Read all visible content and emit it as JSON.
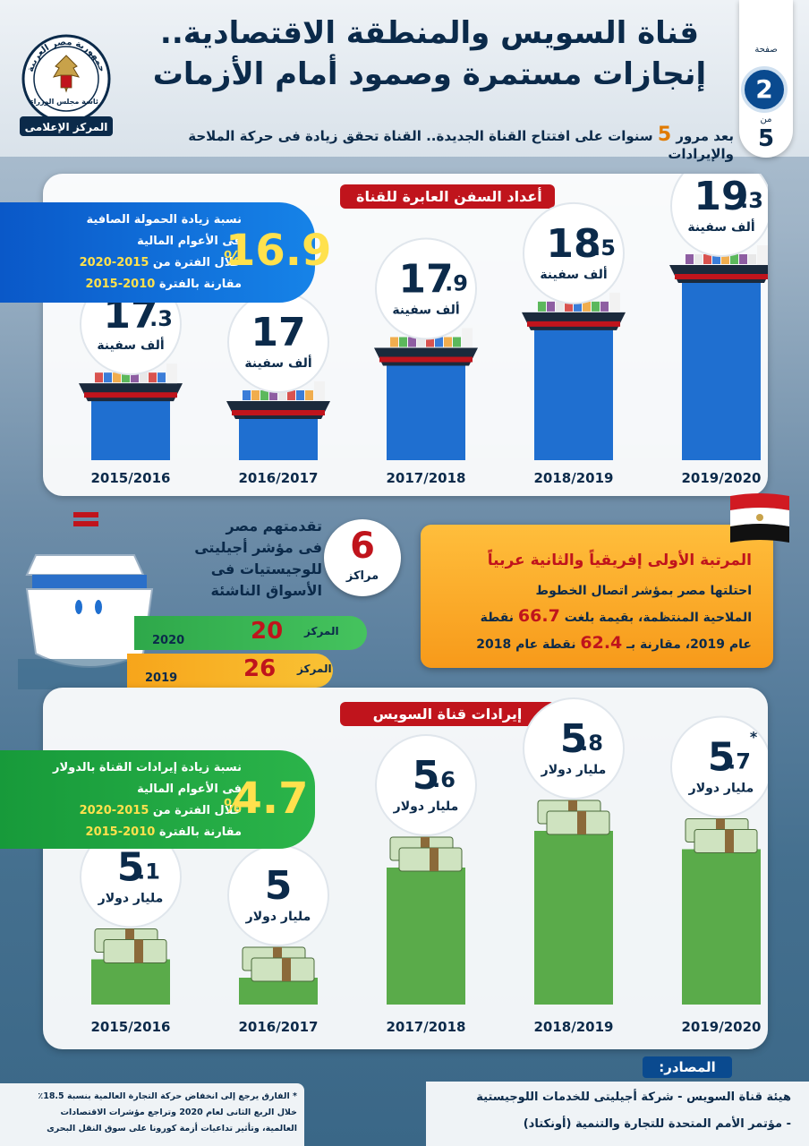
{
  "header": {
    "title_line1": "قناة السويس والمنطقة الاقتصادية..",
    "title_line2": "إنجازات مستمرة وصمود أمام الأزمات",
    "subtitle_before": "بعد مرور",
    "subtitle_number": "5",
    "subtitle_after": "سنوات على افتتاح القناة الجديدة.. القناة تحقق زيادة فى حركة الملاحة والإيرادات"
  },
  "pagination": {
    "page_label": "صفحة",
    "page": "2",
    "of_label": "من",
    "total": "5"
  },
  "logo": {
    "top_text": "جمهورية مصر العربية",
    "middle_text": "رئاسة مجلس الوزراء",
    "bottom_text": "المركز الإعلامى"
  },
  "ships_section": {
    "title": "أعداد السفن العابرة للقناة",
    "note": {
      "value": "16.9",
      "unit": "%",
      "line1": "نسبة زيادة الحمولة الصافية",
      "line2": "فى الأعوام المالية",
      "line3_prefix": "خلال الفترة من",
      "line3_period": "2015-2020",
      "line4_prefix": "مقارنة بالفترة",
      "line4_period": "2010-2015"
    }
  },
  "revenue_section": {
    "title": "إيرادات قناة السويس",
    "note": {
      "value": "4.7",
      "unit": "%",
      "line1": "نسبة زيادة إيرادات القناة بالدولار",
      "line2": "فى الأعوام المالية",
      "line3_prefix": "خلال الفترة من",
      "line3_period": "2015-2020",
      "line4_prefix": "مقارنة بالفترة",
      "line4_period": "2010-2015"
    }
  },
  "chart_data": [
    {
      "type": "bar",
      "title": "أعداد السفن العابرة للقناة",
      "unit_label": "ألف سفينة",
      "categories": [
        "2015/2016",
        "2016/2017",
        "2017/2018",
        "2018/2019",
        "2019/2020"
      ],
      "values": [
        17.3,
        17,
        17.9,
        18.5,
        19.3
      ],
      "value_labels": [
        "17.3",
        "17",
        "17.9",
        "18.5",
        "19.3"
      ],
      "bar_color": "#1f6fd0"
    },
    {
      "type": "bar",
      "title": "إيرادات قناة السويس",
      "unit_label": "مليار دولار",
      "categories": [
        "2015/2016",
        "2016/2017",
        "2017/2018",
        "2018/2019",
        "2019/2020"
      ],
      "values": [
        5.1,
        5,
        5.6,
        5.8,
        5.7
      ],
      "value_labels": [
        "5.1",
        "5",
        "5.6",
        "5.8",
        "5.7"
      ],
      "annotations": [
        "",
        "",
        "",
        "",
        "*"
      ],
      "bar_color": "#5aab4a"
    }
  ],
  "logistics": {
    "line1": "تقدمتهم مصر",
    "line2": "فى مؤشر أجيليتى",
    "line3": "للوجيستيات فى",
    "line4": "الأسواق الناشئة",
    "advance_number": "6",
    "advance_label": "مراكز",
    "ranks": [
      {
        "year": "2020",
        "label": "المركز",
        "rank": "20"
      },
      {
        "year": "2019",
        "label": "المركز",
        "rank": "26"
      }
    ]
  },
  "ranking_box": {
    "title": "المرتبة الأولى إفريقياً والثانية عربياً",
    "line1": "احتلتها مصر بمؤشر اتصال الخطوط",
    "line2_prefix": "الملاحية المنتظمة، بقيمة بلغت",
    "line2_value": "66.7",
    "line2_suffix": "نقطة",
    "line3_prefix": "عام 2019، مقارنة بـ",
    "line3_value": "62.4",
    "line3_suffix": "نقطة عام 2018"
  },
  "sources": {
    "title": "المصادر:",
    "line1": "هيئة قناة السويس - شركة أجيليتى للخدمات اللوجيستية",
    "line2": "- مؤتمر الأمم المتحدة للتجارة والتنمية (أونكتاد)"
  },
  "footnote": {
    "line1": "* الفارق يرجع إلى انخفاض حركة التجارة العالمية بنسبة 18.5٪",
    "line2": "خلال الربع الثانى لعام 2020 وتراجع مؤشرات الاقتصادات",
    "line3": "العالمية، وتأثير تداعيات أزمة كورونا على سوق النقل البحرى"
  },
  "colors": {
    "navy": "#0b2a4a",
    "red": "#c0141c",
    "blue": "#1f6fd0",
    "green": "#5aab4a",
    "orange": "#f79a1a",
    "yellow": "#ffe14d"
  }
}
